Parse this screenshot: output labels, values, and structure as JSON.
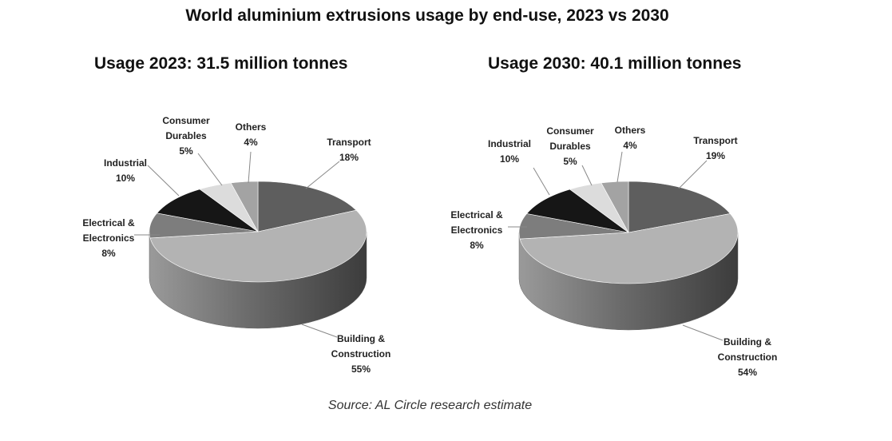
{
  "title": "World aluminium extrusions usage by end-use, 2023 vs 2030",
  "source": "Source: AL Circle research estimate",
  "colors": {
    "Transport": "#5e5e5e",
    "Building & Construction": "#b3b3b3",
    "Electrical & Electronics": "#7d7d7d",
    "Industrial": "#161616",
    "Consumer Durables": "#dcdcdc",
    "Others": "#a3a3a3"
  },
  "chart_data": [
    {
      "type": "pie",
      "title": "Usage 2023: 31.5 million tonnes",
      "categories": [
        "Transport",
        "Building & Construction",
        "Electrical & Electronics",
        "Industrial",
        "Consumer Durables",
        "Others"
      ],
      "values": [
        18,
        55,
        8,
        10,
        5,
        4
      ],
      "value_labels": [
        "18%",
        "55%",
        "8%",
        "10%",
        "5%",
        "4%"
      ],
      "label_lines": [
        [
          "Transport"
        ],
        [
          "Building &",
          "Construction"
        ],
        [
          "Electrical &",
          "Electronics"
        ],
        [
          "Industrial"
        ],
        [
          "Consumer",
          "Durables"
        ],
        [
          "Others"
        ]
      ],
      "legend": "none (leader-line labels)"
    },
    {
      "type": "pie",
      "title": "Usage 2030: 40.1 million tonnes",
      "categories": [
        "Transport",
        "Building & Construction",
        "Electrical & Electronics",
        "Industrial",
        "Consumer Durables",
        "Others"
      ],
      "values": [
        19,
        54,
        8,
        10,
        5,
        4
      ],
      "value_labels": [
        "19%",
        "54%",
        "8%",
        "10%",
        "5%",
        "4%"
      ],
      "label_lines": [
        [
          "Transport"
        ],
        [
          "Building &",
          "Construction"
        ],
        [
          "Electrical &",
          "Electronics"
        ],
        [
          "Industrial"
        ],
        [
          "Consumer",
          "Durables"
        ],
        [
          "Others"
        ]
      ],
      "legend": "none (leader-line labels)"
    }
  ]
}
